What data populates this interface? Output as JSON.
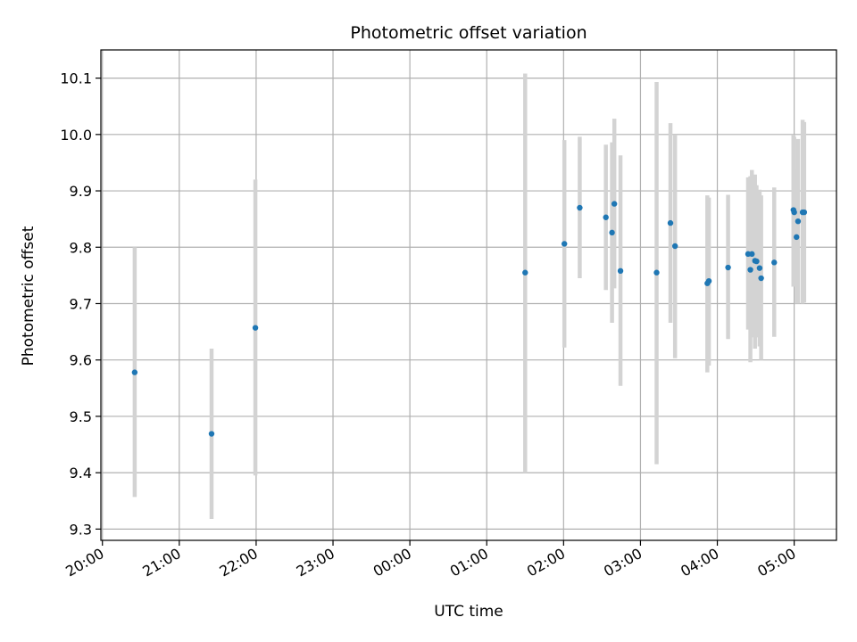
{
  "chart_data": {
    "type": "scatter",
    "title": "Photometric offset variation",
    "xlabel": "UTC time",
    "ylabel": "Photometric offset",
    "x_unit": "hours after 20:00 UTC (axis spans to next day)",
    "xlim": [
      -0.02,
      9.55
    ],
    "ylim": [
      9.28,
      10.15
    ],
    "x_ticks": [
      {
        "x": 0,
        "label": "20:00"
      },
      {
        "x": 1,
        "label": "21:00"
      },
      {
        "x": 2,
        "label": "22:00"
      },
      {
        "x": 3,
        "label": "23:00"
      },
      {
        "x": 4,
        "label": "00:00"
      },
      {
        "x": 5,
        "label": "01:00"
      },
      {
        "x": 6,
        "label": "02:00"
      },
      {
        "x": 7,
        "label": "03:00"
      },
      {
        "x": 8,
        "label": "04:00"
      },
      {
        "x": 9,
        "label": "05:00"
      }
    ],
    "y_ticks": [
      {
        "y": 9.3,
        "label": "9.3"
      },
      {
        "y": 9.4,
        "label": "9.4"
      },
      {
        "y": 9.5,
        "label": "9.5"
      },
      {
        "y": 9.6,
        "label": "9.6"
      },
      {
        "y": 9.7,
        "label": "9.7"
      },
      {
        "y": 9.8,
        "label": "9.8"
      },
      {
        "y": 9.9,
        "label": "9.9"
      },
      {
        "y": 10.0,
        "label": "10.0"
      },
      {
        "y": 10.1,
        "label": "10.1"
      }
    ],
    "grid": true,
    "colors": {
      "point": "#1f77b4",
      "errorbar": "#d3d3d3",
      "grid": "#b0b0b0",
      "axes": "#000000"
    },
    "points": [
      {
        "x": 0.42,
        "y": 9.578,
        "low": 9.357,
        "high": 9.8
      },
      {
        "x": 1.42,
        "y": 9.469,
        "low": 9.318,
        "high": 9.62
      },
      {
        "x": 1.99,
        "y": 9.657,
        "low": 9.395,
        "high": 9.92
      },
      {
        "x": 5.5,
        "y": 9.755,
        "low": 9.4,
        "high": 10.108
      },
      {
        "x": 6.01,
        "y": 9.806,
        "low": 9.622,
        "high": 9.99
      },
      {
        "x": 6.21,
        "y": 9.87,
        "low": 9.745,
        "high": 9.996
      },
      {
        "x": 6.55,
        "y": 9.853,
        "low": 9.724,
        "high": 9.982
      },
      {
        "x": 6.63,
        "y": 9.826,
        "low": 9.666,
        "high": 9.986
      },
      {
        "x": 6.66,
        "y": 9.877,
        "low": 9.727,
        "high": 10.028
      },
      {
        "x": 6.74,
        "y": 9.758,
        "low": 9.554,
        "high": 9.963
      },
      {
        "x": 7.21,
        "y": 9.755,
        "low": 9.415,
        "high": 10.093
      },
      {
        "x": 7.39,
        "y": 9.843,
        "low": 9.666,
        "high": 10.02
      },
      {
        "x": 7.45,
        "y": 9.802,
        "low": 9.603,
        "high": 10.0
      },
      {
        "x": 7.87,
        "y": 9.736,
        "low": 9.578,
        "high": 9.892
      },
      {
        "x": 7.89,
        "y": 9.74,
        "low": 9.59,
        "high": 9.888
      },
      {
        "x": 8.14,
        "y": 9.764,
        "low": 9.637,
        "high": 9.893
      },
      {
        "x": 8.4,
        "y": 9.788,
        "low": 9.654,
        "high": 9.924
      },
      {
        "x": 8.43,
        "y": 9.76,
        "low": 9.596,
        "high": 9.926
      },
      {
        "x": 8.45,
        "y": 9.788,
        "low": 9.64,
        "high": 9.937
      },
      {
        "x": 8.49,
        "y": 9.776,
        "low": 9.62,
        "high": 9.929
      },
      {
        "x": 8.51,
        "y": 9.775,
        "low": 9.64,
        "high": 9.91
      },
      {
        "x": 8.55,
        "y": 9.763,
        "low": 9.624,
        "high": 9.902
      },
      {
        "x": 8.57,
        "y": 9.745,
        "low": 9.6,
        "high": 9.892
      },
      {
        "x": 8.74,
        "y": 9.773,
        "low": 9.641,
        "high": 9.906
      },
      {
        "x": 8.99,
        "y": 9.866,
        "low": 9.73,
        "high": 10.0
      },
      {
        "x": 9.0,
        "y": 9.862,
        "low": 9.73,
        "high": 9.996
      },
      {
        "x": 9.03,
        "y": 9.818,
        "low": 9.7,
        "high": 9.938
      },
      {
        "x": 9.05,
        "y": 9.846,
        "low": 9.7,
        "high": 9.992
      },
      {
        "x": 9.11,
        "y": 9.862,
        "low": 9.7,
        "high": 10.026
      },
      {
        "x": 9.13,
        "y": 9.862,
        "low": 9.702,
        "high": 10.022
      }
    ]
  }
}
